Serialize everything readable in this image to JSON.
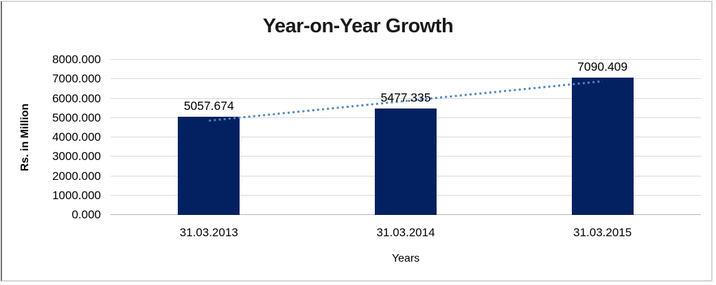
{
  "chart_data": {
    "type": "bar",
    "title": "Year-on-Year Growth",
    "xlabel": "Years",
    "ylabel": "Rs. in Million",
    "categories": [
      "31.03.2013",
      "31.03.2014",
      "31.03.2015"
    ],
    "values": [
      5057.674,
      5477.335,
      7090.409
    ],
    "data_labels": [
      "5057.674",
      "5477.335",
      "7090.409"
    ],
    "ylim": [
      0,
      8000
    ],
    "ytick_values": [
      0,
      1000,
      2000,
      3000,
      4000,
      5000,
      6000,
      7000,
      8000
    ],
    "ytick_labels": [
      "0.000",
      "1000.000",
      "2000.000",
      "3000.000",
      "4000.000",
      "5000.000",
      "6000.000",
      "7000.000",
      "8000.000"
    ],
    "grid": true,
    "legend": false,
    "trendline": {
      "type": "linear",
      "style": "dotted"
    },
    "colors": {
      "bar": "#032161",
      "trendline": "#4E86C2",
      "gridline": "#D9D9D9",
      "axis_line": "#B3B3B3",
      "text": "#000000"
    }
  }
}
